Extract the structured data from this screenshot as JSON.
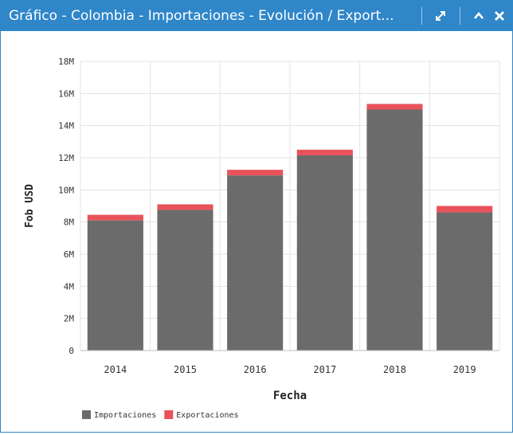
{
  "panel": {
    "title": "Gráfico - Colombia - Importaciones - Evolución / Export...",
    "expand_icon": "expand-diagonal-icon",
    "collapse_icon": "chevron-up-icon",
    "close_icon": "close-icon",
    "header_color": "#2f86c9"
  },
  "chart_data": {
    "type": "bar",
    "stacked": true,
    "categories": [
      "2014",
      "2015",
      "2016",
      "2017",
      "2018",
      "2019"
    ],
    "series": [
      {
        "name": "Importaciones",
        "color": "#6b6b6b",
        "values": [
          8100000,
          8750000,
          10900000,
          12150000,
          15000000,
          8600000
        ]
      },
      {
        "name": "Exportaciones",
        "color": "#e8535b",
        "values": [
          350000,
          350000,
          350000,
          350000,
          350000,
          400000
        ]
      }
    ],
    "xlabel": "Fecha",
    "ylabel": "Fob USD",
    "ylim": [
      0,
      18000000
    ],
    "yticks": [
      0,
      2000000,
      4000000,
      6000000,
      8000000,
      10000000,
      12000000,
      14000000,
      16000000,
      18000000
    ],
    "ytick_labels": [
      "0",
      "2M",
      "4M",
      "6M",
      "8M",
      "10M",
      "12M",
      "14M",
      "16M",
      "18M"
    ],
    "grid": true,
    "legend_placement": "bottom-left"
  }
}
